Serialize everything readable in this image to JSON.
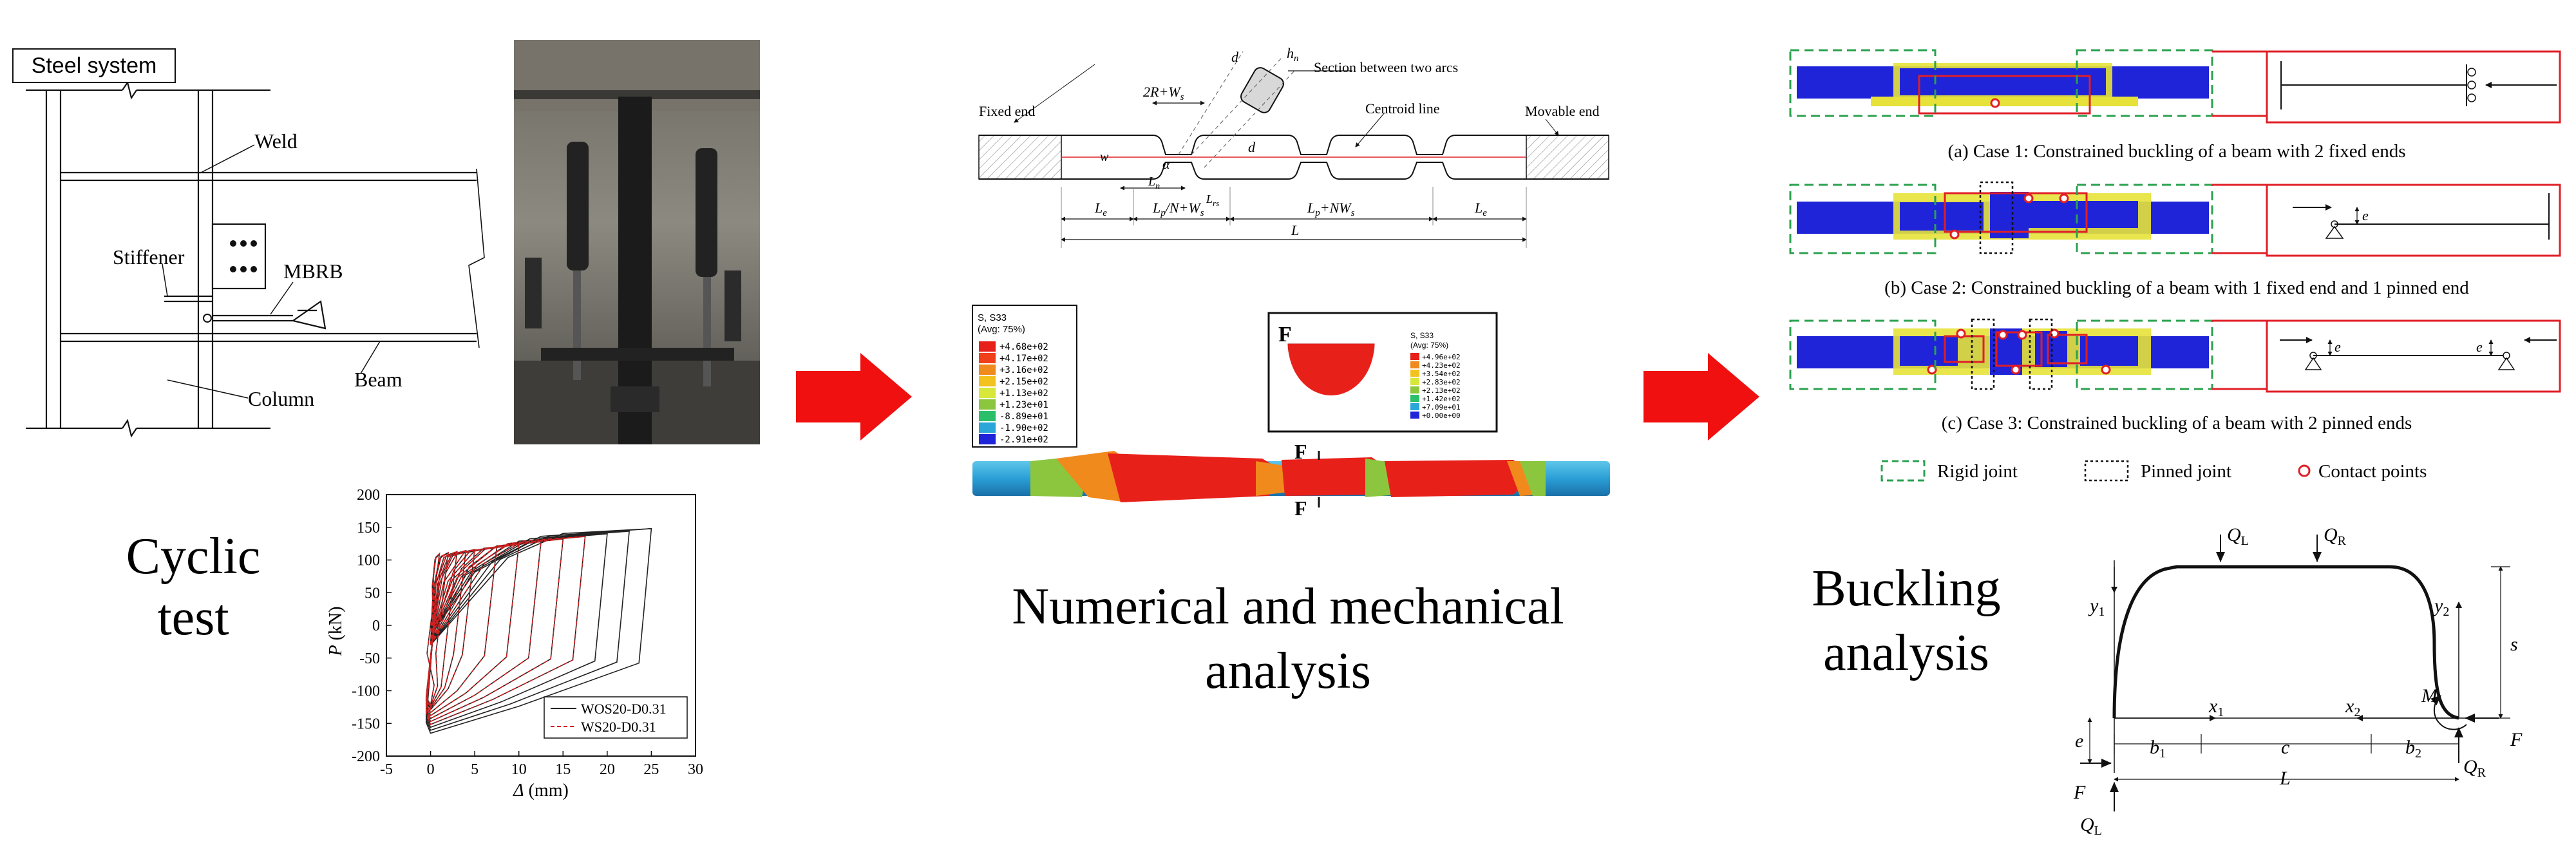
{
  "colors": {
    "arrow_red": "#f01010",
    "steel_blue": "#1f24d8",
    "core_yellow": "#e6e23a",
    "rigid_green": "#2aa14f",
    "case_red": "#e01e26",
    "fe_red": "#e8201a",
    "fe_orange": "#f08a1c",
    "fe_green": "#8cc63f",
    "fe_cyan": "#2aa6d8"
  },
  "cyclic": {
    "steel_system": "Steel system",
    "weld": "Weld",
    "stiffener": "Stiffener",
    "mbrb": "MBRB",
    "column": "Column",
    "beam": "Beam",
    "title_line1": "Cyclic",
    "title_line2": "test"
  },
  "hysteresis_chart": {
    "type": "line",
    "ylabel_sym": "P",
    "ylabel_unit": " (kN)",
    "xlabel_sym": "Δ",
    "xlabel_unit": " (mm)",
    "xlim": [
      -5,
      30
    ],
    "ylim": [
      -200,
      200
    ],
    "xticks": [
      "-5",
      "0",
      "5",
      "10",
      "15",
      "20",
      "25",
      "30"
    ],
    "yticks": [
      "200",
      "150",
      "100",
      "50",
      "0",
      "-50",
      "-100",
      "-150",
      "-200"
    ],
    "series": [
      {
        "name": "WOS20-D0.31",
        "color": "#222222",
        "style": "solid",
        "amplitudes": [
          1,
          2,
          3,
          4,
          5,
          7.5,
          10,
          12.5,
          15,
          17.5,
          20,
          22.5,
          25
        ]
      },
      {
        "name": "WS20-D0.31",
        "color": "#d02020",
        "style": "dashed",
        "amplitudes": [
          1,
          2,
          3,
          4,
          5,
          7.5,
          10,
          12.5,
          15,
          17.5
        ]
      }
    ]
  },
  "numerical": {
    "fixed_end": "Fixed end",
    "centroid_line": "Centroid line",
    "movable_end": "Movable end",
    "section_between": "Section between two arcs",
    "dim_2R": "2R+W",
    "dim_2R_sub": "s",
    "dim_Ls1": "L",
    "dim_Ls1_sub": "e",
    "dim_LpN": "L",
    "dim_LpN_mid": "p",
    "dim_LpN_tail": "/N+W",
    "dim_LpN_sub": "s",
    "dim_LpNW": "L",
    "dim_LpNW_mid": "p",
    "dim_LpNW_tail": "+NW",
    "dim_LpNW_sub": "s",
    "dim_Le2": "L",
    "dim_Le2_sub": "e",
    "dim_L": "L",
    "sym_d": "d",
    "sym_hn": "h",
    "sym_hn_sub": "n",
    "sym_w": "w",
    "sym_alpha": "α",
    "sym_Ln": "L",
    "sym_Ln_sub": "n",
    "sym_Lrs": "L",
    "sym_Lrs_sub": "rs",
    "legend1_title": "S, S33",
    "legend1_avg": "(Avg: 75%)",
    "legend1_values": [
      "+4.68e+02",
      "+4.17e+02",
      "+3.16e+02",
      "+2.15e+02",
      "+1.13e+02",
      "+1.23e+01",
      "-8.89e+01",
      "-1.90e+02",
      "-2.91e+02"
    ],
    "legend2_title": "S, S33",
    "legend2_avg": "(Avg: 75%)",
    "legend2_values": [
      "+4.96e+02",
      "+4.23e+02",
      "+3.54e+02",
      "+2.83e+02",
      "+2.13e+02",
      "+1.42e+02",
      "+7.09e+01",
      "+0.00e+00"
    ],
    "force_F": "F",
    "title_line1": "Numerical and mechanical",
    "title_line2": "analysis"
  },
  "buckling": {
    "case1": "(a) Case 1: Constrained buckling of a beam with 2 fixed ends",
    "case2": "(b) Case 2: Constrained buckling of a beam with 1 fixed end and 1 pinned end",
    "case3": "(c) Case 3: Constrained buckling of a beam with 2 pinned ends",
    "legend_rigid": "Rigid joint",
    "legend_pinned": "Pinned joint",
    "legend_contact": "Contact points",
    "sym_e": "e",
    "title_line1": "Buckling",
    "title_line2": "analysis",
    "diag": {
      "QL": "Q",
      "QL_sub": "L",
      "QR": "Q",
      "QR_sub": "R",
      "y1": "y",
      "y1_sub": "1",
      "y2": "y",
      "y2_sub": "2",
      "x1": "x",
      "x1_sub": "1",
      "x2": "x",
      "x2_sub": "2",
      "s": "s",
      "M": "M",
      "F": "F",
      "e": "e",
      "b1": "b",
      "b1_sub": "1",
      "c": "c",
      "b2": "b",
      "b2_sub": "2",
      "L": "L"
    }
  }
}
